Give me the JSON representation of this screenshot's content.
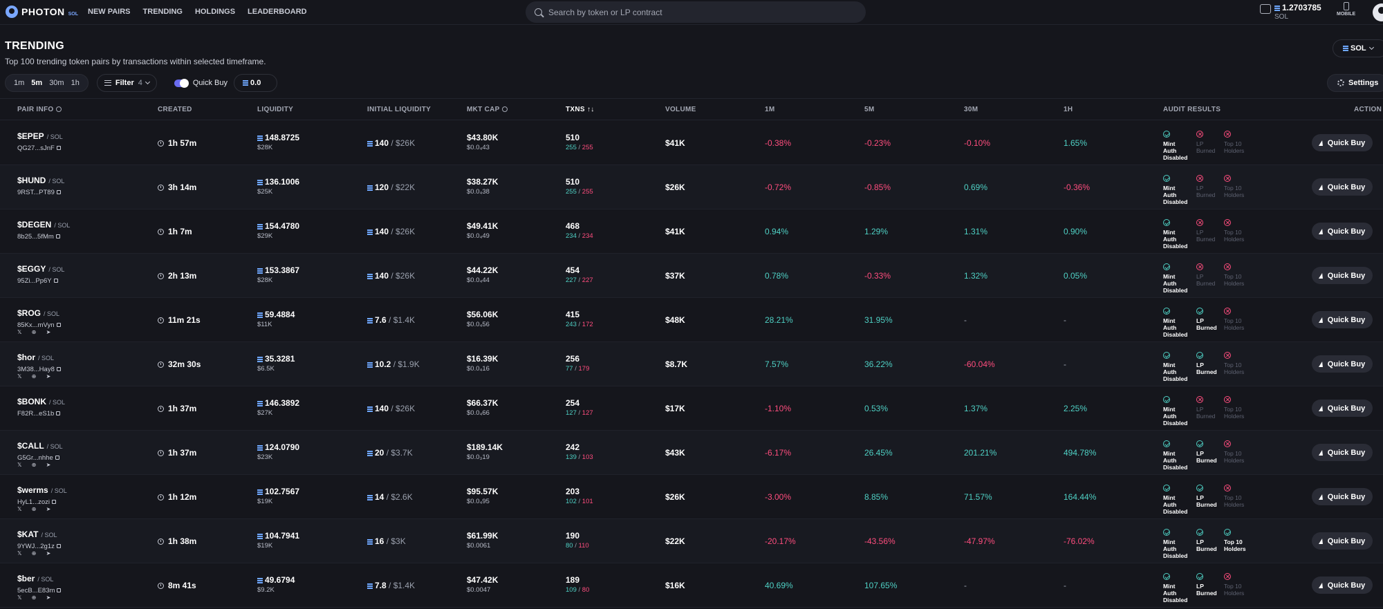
{
  "header": {
    "logo_text": "PHOTON",
    "logo_sub": "SOL",
    "nav": [
      "NEW PAIRS",
      "TRENDING",
      "HOLDINGS",
      "LEADERBOARD"
    ],
    "search_placeholder": "Search by token or LP contract",
    "balance": "1.2703785",
    "balance_unit": "SOL",
    "mobile_label": "MOBILE"
  },
  "page": {
    "title": "TRENDING",
    "subtitle": "Top 100 trending token pairs by transactions within selected timeframe.",
    "chain_select": "SOL",
    "timeframes": [
      "1m",
      "5m",
      "30m",
      "1h"
    ],
    "active_timeframe": "5m",
    "filter_label": "Filter",
    "filter_count": "4",
    "quick_buy_label": "Quick Buy",
    "quick_buy_enabled": true,
    "quick_buy_amount": "0.0",
    "settings_label": "Settings"
  },
  "table": {
    "columns": {
      "pair_info": "PAIR INFO",
      "created": "CREATED",
      "liquidity": "LIQUIDITY",
      "initial_liquidity": "INITIAL LIQUIDITY",
      "mkt_cap": "MKT CAP",
      "txns": "TXNS",
      "volume": "VOLUME",
      "c1m": "1M",
      "c5m": "5M",
      "c30m": "30M",
      "c1h": "1H",
      "audit": "AUDIT RESULTS",
      "action": "ACTION"
    },
    "sort_indicator": "↑↓",
    "quick_buy_button": "Quick Buy",
    "audit_labels": {
      "mint": [
        "Mint Auth",
        "Disabled"
      ],
      "lp": [
        "LP",
        "Burned"
      ],
      "top10": [
        "Top 10",
        "Holders"
      ]
    },
    "rows": [
      {
        "name": "$EPEP",
        "pair": "SOL",
        "addr": "QG27...sJnF",
        "socials": false,
        "created": "1h 57m",
        "liq_sol": "148.8725",
        "liq_usd": "$28K",
        "init_sol": "140",
        "init_usd": "$26K",
        "mcap": "$43.80K",
        "price": "$0.0₄43",
        "txns": "510",
        "buys": "255",
        "sells": "255",
        "volume": "$41K",
        "c1m": "-0.38%",
        "c5m": "-0.23%",
        "c30m": "-0.10%",
        "c1h": "1.65%",
        "mint_ok": true,
        "lp_ok": false,
        "top10_ok": false
      },
      {
        "name": "$HUND",
        "pair": "SOL",
        "addr": "9RST...PT89",
        "socials": false,
        "created": "3h 14m",
        "liq_sol": "136.1006",
        "liq_usd": "$25K",
        "init_sol": "120",
        "init_usd": "$22K",
        "mcap": "$38.27K",
        "price": "$0.0₄38",
        "txns": "510",
        "buys": "255",
        "sells": "255",
        "volume": "$26K",
        "c1m": "-0.72%",
        "c5m": "-0.85%",
        "c30m": "0.69%",
        "c1h": "-0.36%",
        "mint_ok": true,
        "lp_ok": false,
        "top10_ok": false
      },
      {
        "name": "$DEGEN",
        "pair": "SOL",
        "addr": "8b25...5fMm",
        "socials": false,
        "created": "1h 7m",
        "liq_sol": "154.4780",
        "liq_usd": "$29K",
        "init_sol": "140",
        "init_usd": "$26K",
        "mcap": "$49.41K",
        "price": "$0.0₄49",
        "txns": "468",
        "buys": "234",
        "sells": "234",
        "volume": "$41K",
        "c1m": "0.94%",
        "c5m": "1.29%",
        "c30m": "1.31%",
        "c1h": "0.90%",
        "mint_ok": true,
        "lp_ok": false,
        "top10_ok": false
      },
      {
        "name": "$EGGY",
        "pair": "SOL",
        "addr": "95Zi...Pp6Y",
        "socials": false,
        "created": "2h 13m",
        "liq_sol": "153.3867",
        "liq_usd": "$28K",
        "init_sol": "140",
        "init_usd": "$26K",
        "mcap": "$44.22K",
        "price": "$0.0₄44",
        "txns": "454",
        "buys": "227",
        "sells": "227",
        "volume": "$37K",
        "c1m": "0.78%",
        "c5m": "-0.33%",
        "c30m": "1.32%",
        "c1h": "0.05%",
        "mint_ok": true,
        "lp_ok": false,
        "top10_ok": false
      },
      {
        "name": "$ROG",
        "pair": "SOL",
        "addr": "85Kx...mVyn",
        "socials": true,
        "created": "11m 21s",
        "liq_sol": "59.4884",
        "liq_usd": "$11K",
        "init_sol": "7.6",
        "init_usd": "$1.4K",
        "mcap": "$56.06K",
        "price": "$0.0₄56",
        "txns": "415",
        "buys": "243",
        "sells": "172",
        "volume": "$48K",
        "c1m": "28.21%",
        "c5m": "31.95%",
        "c30m": "-",
        "c1h": "-",
        "mint_ok": true,
        "lp_ok": true,
        "top10_ok": false
      },
      {
        "name": "$hor",
        "pair": "SOL",
        "addr": "3M38...Hay8",
        "socials": true,
        "created": "32m 30s",
        "liq_sol": "35.3281",
        "liq_usd": "$6.5K",
        "init_sol": "10.2",
        "init_usd": "$1.9K",
        "mcap": "$16.39K",
        "price": "$0.0₄16",
        "txns": "256",
        "buys": "77",
        "sells": "179",
        "volume": "$8.7K",
        "c1m": "7.57%",
        "c5m": "36.22%",
        "c30m": "-60.04%",
        "c1h": "-",
        "mint_ok": true,
        "lp_ok": true,
        "top10_ok": false
      },
      {
        "name": "$BONK",
        "pair": "SOL",
        "addr": "F82R...eS1b",
        "socials": false,
        "created": "1h 37m",
        "liq_sol": "146.3892",
        "liq_usd": "$27K",
        "init_sol": "140",
        "init_usd": "$26K",
        "mcap": "$66.37K",
        "price": "$0.0₄66",
        "txns": "254",
        "buys": "127",
        "sells": "127",
        "volume": "$17K",
        "c1m": "-1.10%",
        "c5m": "0.53%",
        "c30m": "1.37%",
        "c1h": "2.25%",
        "mint_ok": true,
        "lp_ok": false,
        "top10_ok": false
      },
      {
        "name": "$CALL",
        "pair": "SOL",
        "addr": "G5Gr...nhhe",
        "socials": true,
        "created": "1h 37m",
        "liq_sol": "124.0790",
        "liq_usd": "$23K",
        "init_sol": "20",
        "init_usd": "$3.7K",
        "mcap": "$189.14K",
        "price": "$0.0₃19",
        "txns": "242",
        "buys": "139",
        "sells": "103",
        "volume": "$43K",
        "c1m": "-6.17%",
        "c5m": "26.45%",
        "c30m": "201.21%",
        "c1h": "494.78%",
        "mint_ok": true,
        "lp_ok": true,
        "top10_ok": false
      },
      {
        "name": "$werms",
        "pair": "SOL",
        "addr": "HyL1...zozi",
        "socials": true,
        "created": "1h 12m",
        "liq_sol": "102.7567",
        "liq_usd": "$19K",
        "init_sol": "14",
        "init_usd": "$2.6K",
        "mcap": "$95.57K",
        "price": "$0.0₄95",
        "txns": "203",
        "buys": "102",
        "sells": "101",
        "volume": "$26K",
        "c1m": "-3.00%",
        "c5m": "8.85%",
        "c30m": "71.57%",
        "c1h": "164.44%",
        "mint_ok": true,
        "lp_ok": true,
        "top10_ok": false
      },
      {
        "name": "$KAT",
        "pair": "SOL",
        "addr": "9YWJ...2g1z",
        "socials": true,
        "created": "1h 38m",
        "liq_sol": "104.7941",
        "liq_usd": "$19K",
        "init_sol": "16",
        "init_usd": "$3K",
        "mcap": "$61.99K",
        "price": "$0.0061",
        "txns": "190",
        "buys": "80",
        "sells": "110",
        "volume": "$22K",
        "c1m": "-20.17%",
        "c5m": "-43.56%",
        "c30m": "-47.97%",
        "c1h": "-76.02%",
        "mint_ok": true,
        "lp_ok": true,
        "top10_ok": true
      },
      {
        "name": "$ber",
        "pair": "SOL",
        "addr": "5ecB...E83m",
        "socials": true,
        "created": "8m 41s",
        "liq_sol": "49.6794",
        "liq_usd": "$9.2K",
        "init_sol": "7.8",
        "init_usd": "$1.4K",
        "mcap": "$47.42K",
        "price": "$0.0047",
        "txns": "189",
        "buys": "109",
        "sells": "80",
        "volume": "$16K",
        "c1m": "40.69%",
        "c5m": "107.65%",
        "c30m": "-",
        "c1h": "-",
        "mint_ok": true,
        "lp_ok": true,
        "top10_ok": false
      }
    ]
  }
}
